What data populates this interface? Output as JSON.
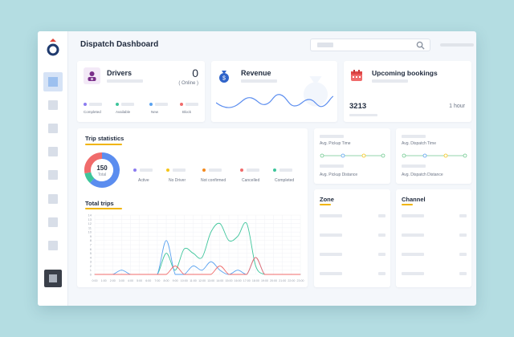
{
  "header": {
    "title": "Dispatch Dashboard"
  },
  "drivers": {
    "title": "Drivers",
    "count": "0",
    "status": "( Online )",
    "legend": [
      {
        "label": "Completed",
        "color": "#8c7cf0"
      },
      {
        "label": "Available",
        "color": "#3ec59b"
      },
      {
        "label": "New",
        "color": "#5aa2f0"
      },
      {
        "label": "Block",
        "color": "#f06b6b"
      }
    ]
  },
  "revenue": {
    "title": "Revenue"
  },
  "bookings": {
    "title": "Upcoming bookings",
    "count": "3213",
    "time": "1 hour"
  },
  "trip_stats": {
    "title": "Trip statistics",
    "total_value": "150",
    "total_label": "Total",
    "legend": [
      {
        "label": "Active",
        "color": "#8c7cf0"
      },
      {
        "label": "No Driver",
        "color": "#f5c518"
      },
      {
        "label": "Not confirmed",
        "color": "#f48a1e"
      },
      {
        "label": "Cancelled",
        "color": "#f06b6b"
      },
      {
        "label": "Completed",
        "color": "#3ec59b"
      }
    ]
  },
  "pickup": {
    "time_label": "Avg. Pickup Time",
    "distance_label": "Avg. Pickup Distance"
  },
  "dispatch": {
    "time_label": "Avg. Dispatch Time",
    "distance_label": "Avg. Dispatch Distance"
  },
  "zone": {
    "title": "Zone"
  },
  "channel": {
    "title": "Channel"
  },
  "chart_data": {
    "type": "line",
    "title": "Total trips",
    "xlabel": "",
    "ylabel": "",
    "ylim": [
      0,
      14
    ],
    "yticks": [
      "0",
      "1",
      "2",
      "3",
      "4",
      "5",
      "6",
      "7",
      "8",
      "9",
      "10",
      "11",
      "12",
      "13",
      "14"
    ],
    "x": [
      "0:00",
      "1:00",
      "2:00",
      "3:00",
      "4:00",
      "5:00",
      "6:00",
      "7:00",
      "8:00",
      "9:00",
      "10:00",
      "11:00",
      "12:00",
      "13:00",
      "14:00",
      "15:00",
      "16:00",
      "17:00",
      "18:00",
      "19:00",
      "20:00",
      "21:00",
      "22:00",
      "23:00"
    ],
    "series": [
      {
        "color": "#3ec59b",
        "values": [
          0,
          0,
          0,
          0,
          0,
          0,
          0,
          0,
          5,
          1,
          6,
          5,
          4,
          10,
          12,
          8,
          9,
          12,
          2,
          0,
          0,
          0,
          0,
          0
        ]
      },
      {
        "color": "#5aa2f0",
        "values": [
          0,
          0,
          0,
          1,
          0,
          0,
          0,
          0,
          8,
          0,
          0,
          2,
          1,
          3,
          1,
          0,
          1,
          0,
          4,
          0,
          0,
          0,
          0,
          0
        ]
      },
      {
        "color": "#f06b6b",
        "values": [
          0,
          0,
          0,
          0,
          0,
          0,
          0,
          0,
          0,
          2,
          0,
          0,
          0,
          0,
          2,
          0,
          0,
          0,
          4,
          0,
          0,
          0,
          0,
          0
        ]
      }
    ]
  },
  "donut": {
    "segments": [
      {
        "value": 0.62,
        "color": "#5b8def"
      },
      {
        "value": 0.1,
        "color": "#3ec59b"
      },
      {
        "value": 0.28,
        "color": "#f06b6b"
      }
    ]
  }
}
